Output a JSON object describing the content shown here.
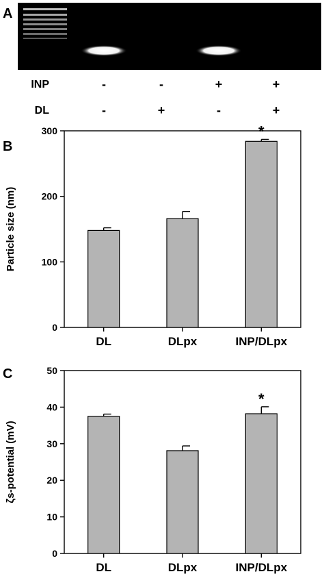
{
  "panels": {
    "a": {
      "label": "A",
      "rows": [
        {
          "label": "INP",
          "signs": [
            "-",
            "-",
            "+",
            "+"
          ]
        },
        {
          "label": "DL",
          "signs": [
            "-",
            "+",
            "-",
            "+"
          ]
        }
      ],
      "bands": [
        1,
        0,
        1,
        0
      ]
    },
    "b": {
      "label": "B"
    },
    "c": {
      "label": "C"
    }
  },
  "chart_data": [
    {
      "type": "bar",
      "categories": [
        "DL",
        "DLpx",
        "INP/DLpx"
      ],
      "values": [
        148,
        166,
        284
      ],
      "errors": [
        4,
        11,
        3
      ],
      "significance": [
        "",
        "",
        "*"
      ],
      "ylabel": "Particle size (nm)",
      "ylim": [
        0,
        300
      ],
      "yticks": [
        0,
        100,
        200,
        300
      ],
      "bar_color": "#b4b4b4"
    },
    {
      "type": "bar",
      "categories": [
        "DL",
        "DLpx",
        "INP/DLpx"
      ],
      "values": [
        37.5,
        28.1,
        38.2
      ],
      "errors": [
        0.6,
        1.3,
        1.9
      ],
      "significance": [
        "",
        "",
        "*"
      ],
      "ylabel": "ζs-potential (mV)",
      "ylim": [
        0,
        50
      ],
      "yticks": [
        0,
        10,
        20,
        30,
        40,
        50
      ],
      "bar_color": "#b4b4b4"
    }
  ]
}
